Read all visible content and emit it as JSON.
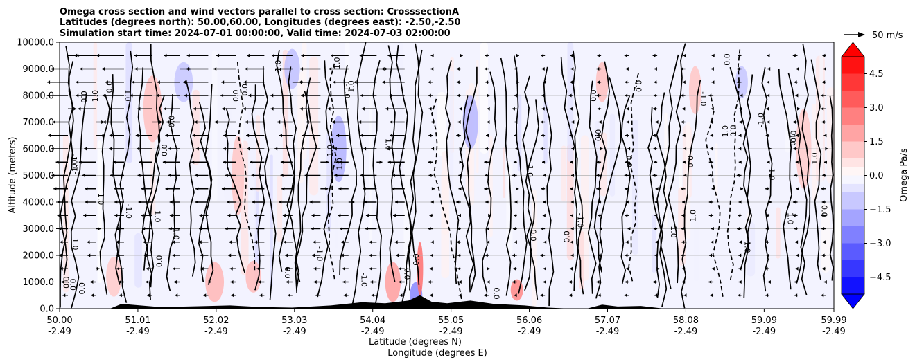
{
  "title_lines": [
    "Omega cross section and wind vectors parallel to cross section: CrosssectionA",
    "Latitudes (degrees north): 50.00,60.00, Longitudes (degrees east): -2.50,-2.50",
    "Simulation start time: 2024-07-01 00:00:00, Valid time: 2024-07-03 02:00:00"
  ],
  "chart_data": {
    "type": "heatmap",
    "variable": "Omega",
    "x_axis": {
      "label_lat": "Latitude (degrees N)",
      "label_lon": "Longitude (degrees E)",
      "range": [
        50.0,
        59.99
      ],
      "ticks": [
        {
          "lat": "50.00",
          "lon": "-2.49",
          "value": 50.0
        },
        {
          "lat": "51.01",
          "lon": "-2.49",
          "value": 51.01
        },
        {
          "lat": "52.02",
          "lon": "-2.49",
          "value": 52.02
        },
        {
          "lat": "53.03",
          "lon": "-2.49",
          "value": 53.03
        },
        {
          "lat": "54.04",
          "lon": "-2.49",
          "value": 54.04
        },
        {
          "lat": "55.05",
          "lon": "-2.49",
          "value": 55.05
        },
        {
          "lat": "56.06",
          "lon": "-2.49",
          "value": 56.06
        },
        {
          "lat": "57.07",
          "lon": "-2.49",
          "value": 57.07
        },
        {
          "lat": "58.08",
          "lon": "-2.49",
          "value": 58.08
        },
        {
          "lat": "59.09",
          "lon": "-2.49",
          "value": 59.09
        },
        {
          "lat": "59.99",
          "lon": "-2.49",
          "value": 59.99
        }
      ]
    },
    "y_axis": {
      "label": "Altitude (meters)",
      "range": [
        0,
        10000
      ],
      "ticks": [
        "0.0",
        "1000.0",
        "2000.0",
        "3000.0",
        "4000.0",
        "5000.0",
        "6000.0",
        "7000.0",
        "8000.0",
        "9000.0",
        "10000.0"
      ],
      "values": [
        0,
        1000,
        2000,
        3000,
        4000,
        5000,
        6000,
        7000,
        8000,
        9000,
        10000
      ],
      "grid": true
    },
    "colorbar": {
      "label": "Omega Pa/s",
      "range": [
        -5.25,
        5.25
      ],
      "extend": "both",
      "tick_labels": [
        "4.5",
        "3.0",
        "1.5",
        "0.0",
        "−1.5",
        "−3.0",
        "−4.5"
      ],
      "tick_values": [
        4.5,
        3.0,
        1.5,
        0.0,
        -1.5,
        -3.0,
        -4.5
      ],
      "levels": [
        -5.25,
        -4.5,
        -3.75,
        -3.0,
        -2.25,
        -1.5,
        -0.75,
        -0.375,
        0.0,
        0.375,
        0.75,
        1.5,
        2.25,
        3.0,
        3.75,
        4.5,
        5.25
      ],
      "colors": {
        "neg_max": "#0000ff",
        "zero": "#ffffff",
        "pos_max": "#ff0000"
      }
    },
    "contour_labels": [
      "0.0",
      "-1.0",
      "1.0"
    ],
    "wind_reference": {
      "label": "50 m/s",
      "value": 50
    },
    "omega_field": [
      {
        "lat": 50.7,
        "alt": 1200,
        "value": 1.1,
        "w": 0.1,
        "h": 1500
      },
      {
        "lat": 51.2,
        "alt": 7500,
        "value": 1.3,
        "w": 0.12,
        "h": 2500
      },
      {
        "lat": 51.6,
        "alt": 8500,
        "value": -1.2,
        "w": 0.12,
        "h": 1500
      },
      {
        "lat": 52.0,
        "alt": 1000,
        "value": 1.5,
        "w": 0.12,
        "h": 1500
      },
      {
        "lat": 52.3,
        "alt": 5000,
        "value": 1.2,
        "w": 0.08,
        "h": 3000
      },
      {
        "lat": 52.5,
        "alt": 1200,
        "value": 1.4,
        "w": 0.1,
        "h": 1200
      },
      {
        "lat": 53.0,
        "alt": 9000,
        "value": -1.3,
        "w": 0.1,
        "h": 1500
      },
      {
        "lat": 53.6,
        "alt": 6000,
        "value": -1.6,
        "w": 0.1,
        "h": 2500
      },
      {
        "lat": 54.3,
        "alt": 1000,
        "value": 2.0,
        "w": 0.1,
        "h": 1500
      },
      {
        "lat": 54.6,
        "alt": 500,
        "value": -2.5,
        "w": 0.08,
        "h": 1000
      },
      {
        "lat": 54.65,
        "alt": 1500,
        "value": 3.0,
        "w": 0.04,
        "h": 2000
      },
      {
        "lat": 55.3,
        "alt": 7000,
        "value": -1.5,
        "w": 0.1,
        "h": 2000
      },
      {
        "lat": 55.9,
        "alt": 700,
        "value": 2.5,
        "w": 0.08,
        "h": 800
      },
      {
        "lat": 57.0,
        "alt": 8500,
        "value": 1.3,
        "w": 0.08,
        "h": 1500
      },
      {
        "lat": 58.2,
        "alt": 8200,
        "value": 1.2,
        "w": 0.08,
        "h": 1800
      },
      {
        "lat": 58.8,
        "alt": 8500,
        "value": -1.2,
        "w": 0.08,
        "h": 1200
      },
      {
        "lat": 59.6,
        "alt": 6000,
        "value": 1.1,
        "w": 0.1,
        "h": 3000
      }
    ]
  }
}
